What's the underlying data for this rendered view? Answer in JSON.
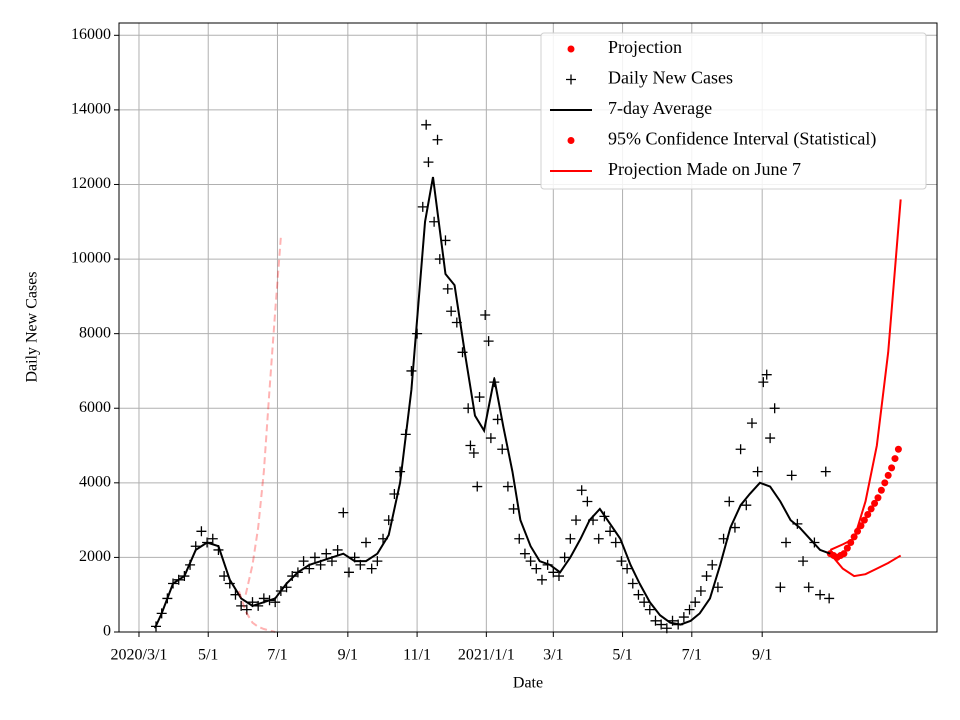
{
  "chart_data": {
    "type": "scatter",
    "xlabel": "Date",
    "ylabel": "Daily New Cases",
    "xlim": [
      -17.6,
      703
    ],
    "ylim": [
      0,
      16330
    ],
    "xticks": [
      {
        "value": 0,
        "label": "2020/3/1"
      },
      {
        "value": 61,
        "label": "5/1"
      },
      {
        "value": 122,
        "label": "7/1"
      },
      {
        "value": 184,
        "label": "9/1"
      },
      {
        "value": 245,
        "label": "11/1"
      },
      {
        "value": 306,
        "label": "2021/1/1"
      },
      {
        "value": 365,
        "label": "3/1"
      },
      {
        "value": 426,
        "label": "5/1"
      },
      {
        "value": 487,
        "label": "7/1"
      },
      {
        "value": 549,
        "label": "9/1"
      }
    ],
    "yticks": [
      0,
      2000,
      4000,
      6000,
      8000,
      10000,
      12000,
      14000,
      16000
    ],
    "grid": true,
    "legend": "upper right",
    "series": [
      {
        "name": "Projection",
        "color": "#ff0000",
        "marker": "dot",
        "x": [
          609,
          612,
          615,
          618,
          621,
          624,
          627,
          630,
          633,
          636,
          639,
          642,
          645,
          648,
          651,
          654,
          657,
          660,
          663,
          666,
          669
        ],
        "values": [
          2100,
          2050,
          2000,
          2050,
          2100,
          2250,
          2400,
          2550,
          2700,
          2850,
          3000,
          3150,
          3300,
          3450,
          3600,
          3800,
          4000,
          4200,
          4400,
          4650,
          4900
        ]
      },
      {
        "name": "Daily New Cases",
        "color": "#000000",
        "marker": "plus",
        "x": [
          15,
          20,
          25,
          30,
          35,
          40,
          45,
          50,
          55,
          60,
          65,
          70,
          75,
          80,
          85,
          90,
          95,
          100,
          105,
          110,
          115,
          120,
          125,
          130,
          135,
          140,
          145,
          150,
          155,
          160,
          165,
          170,
          175,
          180,
          185,
          190,
          195,
          200,
          205,
          210,
          215,
          220,
          225,
          230,
          235,
          240,
          245,
          250,
          253,
          255,
          260,
          263,
          265,
          270,
          272,
          275,
          280,
          285,
          290,
          292,
          295,
          298,
          300,
          305,
          308,
          310,
          313,
          316,
          320,
          325,
          330,
          335,
          340,
          345,
          350,
          355,
          360,
          365,
          370,
          375,
          380,
          385,
          390,
          395,
          400,
          405,
          410,
          415,
          420,
          425,
          430,
          435,
          440,
          445,
          450,
          455,
          460,
          465,
          470,
          475,
          480,
          485,
          490,
          495,
          500,
          505,
          510,
          515,
          520,
          525,
          530,
          535,
          540,
          545,
          550,
          553,
          556,
          560,
          565,
          570,
          575,
          580,
          585,
          590,
          595,
          600,
          605,
          608
        ],
        "values": [
          150,
          500,
          900,
          1300,
          1400,
          1500,
          1800,
          2300,
          2700,
          2400,
          2500,
          2200,
          1500,
          1300,
          1000,
          700,
          600,
          800,
          700,
          900,
          850,
          800,
          1100,
          1200,
          1500,
          1600,
          1900,
          1700,
          2000,
          1800,
          2100,
          1900,
          2200,
          3200,
          1600,
          2000,
          1800,
          2400,
          1700,
          1900,
          2500,
          3000,
          3700,
          4300,
          5300,
          7000,
          8000,
          11400,
          13600,
          12600,
          11000,
          13200,
          10000,
          10500,
          9200,
          8600,
          8300,
          7500,
          6000,
          5000,
          4800,
          3900,
          6300,
          8500,
          7800,
          5200,
          6700,
          5700,
          4900,
          3900,
          3300,
          2500,
          2100,
          1900,
          1700,
          1400,
          1800,
          1600,
          1500,
          2000,
          2500,
          3000,
          3800,
          3500,
          3000,
          2500,
          3100,
          2700,
          2400,
          1900,
          1700,
          1300,
          1000,
          800,
          600,
          300,
          200,
          100,
          300,
          200,
          400,
          600,
          800,
          1100,
          1500,
          1800,
          1200,
          2500,
          3500,
          2800,
          4900,
          3400,
          5600,
          4300,
          6700,
          6900,
          5200,
          6000,
          1200,
          2400,
          4200,
          2900,
          1900,
          1200,
          2400,
          1000,
          4300,
          900
        ]
      },
      {
        "name": "7-day Average",
        "color": "#000000",
        "marker": "line",
        "x": [
          14,
          20,
          30,
          40,
          50,
          60,
          70,
          80,
          90,
          100,
          110,
          120,
          130,
          140,
          150,
          160,
          170,
          180,
          190,
          200,
          210,
          220,
          230,
          240,
          252,
          259,
          270,
          278,
          287,
          296,
          304,
          313,
          321,
          329,
          336,
          345,
          353,
          362,
          371,
          380,
          389,
          397,
          406,
          415,
          424,
          433,
          441,
          450,
          459,
          468,
          477,
          486,
          494,
          503,
          512,
          521,
          530,
          538,
          547,
          556,
          565,
          574,
          582,
          591,
          600,
          609
        ],
        "values": [
          100,
          500,
          1300,
          1500,
          2200,
          2400,
          2300,
          1400,
          900,
          700,
          800,
          900,
          1300,
          1600,
          1800,
          1900,
          2000,
          2100,
          1900,
          1900,
          2100,
          2600,
          4000,
          6500,
          11000,
          12200,
          9600,
          9300,
          7500,
          5800,
          5400,
          6800,
          5500,
          4300,
          3000,
          2300,
          1900,
          1800,
          1600,
          2000,
          2500,
          3000,
          3300,
          2900,
          2500,
          1800,
          1300,
          800,
          450,
          250,
          200,
          300,
          500,
          900,
          1800,
          2800,
          3400,
          3700,
          4000,
          3900,
          3500,
          3000,
          2800,
          2500,
          2200,
          2100
        ]
      },
      {
        "name": "95% Confidence Interval (Statistical)",
        "color": "#ff0000",
        "marker": "dot",
        "x": [
          609,
          620,
          630,
          640,
          650,
          660,
          671
        ],
        "upper": [
          2200,
          2350,
          2500,
          3500,
          5000,
          7500,
          11600
        ],
        "lower": [
          2100,
          1700,
          1500,
          1550,
          1700,
          1850,
          2050
        ]
      },
      {
        "name": "Projection Made on June 7",
        "color": "#ff0000",
        "marker": "line",
        "alpha": 0.3,
        "dashed": true,
        "x": [
          88,
          94,
          100,
          105,
          110,
          115,
          120,
          125
        ],
        "upper": [
          null,
          1000,
          1800,
          2800,
          4300,
          6500,
          8600,
          10600
        ],
        "lower": [
          1100,
          550,
          250,
          140,
          80,
          40,
          0,
          null
        ]
      }
    ]
  }
}
